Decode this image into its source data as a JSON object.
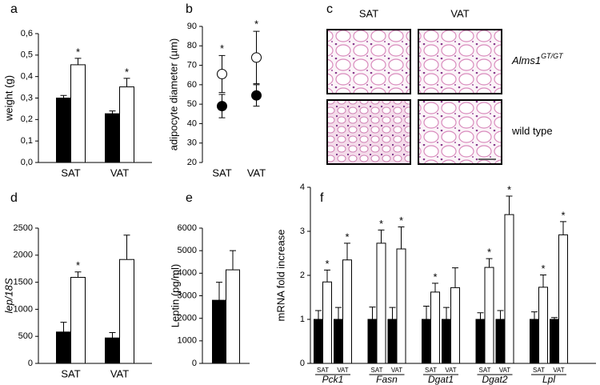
{
  "chart_data": [
    {
      "type": "bar",
      "panel_label": "a",
      "ylabel": "weight (g)",
      "categories": [
        "SAT",
        "VAT"
      ],
      "series": [
        {
          "color": "#000000",
          "values": [
            0.3,
            0.227
          ],
          "errors": [
            0.012,
            0.013
          ]
        },
        {
          "color": "#ffffff",
          "values": [
            0.455,
            0.352
          ],
          "errors": [
            0.03,
            0.04
          ],
          "annotations": [
            "*",
            "*"
          ]
        }
      ],
      "ylim": [
        0,
        0.6
      ],
      "yticks": [
        {
          "value": 0,
          "label": "0,0"
        },
        {
          "value": 0.1,
          "label": "0,1"
        },
        {
          "value": 0.2,
          "label": "0,2"
        },
        {
          "value": 0.3,
          "label": "0,3"
        },
        {
          "value": 0.4,
          "label": "0,4"
        },
        {
          "value": 0.5,
          "label": "0,5"
        },
        {
          "value": 0.6,
          "label": "0,6"
        }
      ]
    },
    {
      "type": "dot",
      "panel_label": "b",
      "ylabel": "adipocyte diameter (µm)",
      "categories": [
        "SAT",
        "VAT"
      ],
      "series": [
        {
          "color": "#000000",
          "values": [
            49,
            54.5
          ],
          "errors": [
            6,
            5.5
          ]
        },
        {
          "color": "#ffffff",
          "values": [
            65.5,
            74
          ],
          "errors": [
            9.5,
            13.5
          ],
          "annotations": [
            "*",
            "*"
          ]
        }
      ],
      "ylim": [
        20,
        90
      ],
      "yticks": [
        20,
        30,
        40,
        50,
        60,
        70,
        80,
        90
      ]
    },
    {
      "type": "image",
      "panel_label": "c",
      "columns": [
        "SAT",
        "VAT"
      ],
      "rows": [
        {
          "label": "Alms1",
          "superscript": "GT/GT"
        },
        {
          "label": "wild type"
        }
      ]
    },
    {
      "type": "bar",
      "panel_label": "d",
      "ylabel": "lep/18S",
      "categories": [
        "SAT",
        "VAT"
      ],
      "series": [
        {
          "color": "#000000",
          "values": [
            580,
            470
          ],
          "errors": [
            180,
            100
          ]
        },
        {
          "color": "#ffffff",
          "values": [
            1590,
            1920
          ],
          "errors": [
            100,
            450
          ],
          "annotations": [
            "*",
            null
          ]
        }
      ],
      "ylim": [
        0,
        2500
      ],
      "yticks": [
        0,
        500,
        1000,
        1500,
        2000,
        2500
      ]
    },
    {
      "type": "bar",
      "panel_label": "e",
      "ylabel": "Leptin (pg/ml)",
      "categories": [
        null
      ],
      "series": [
        {
          "color": "#000000",
          "values": [
            2800
          ],
          "errors": [
            800
          ]
        },
        {
          "color": "#ffffff",
          "values": [
            4150
          ],
          "errors": [
            850
          ]
        }
      ],
      "ylim": [
        0,
        6000
      ],
      "yticks": [
        0,
        1000,
        2000,
        3000,
        4000,
        5000,
        6000
      ]
    },
    {
      "type": "bar",
      "panel_label": "f",
      "ylabel": "mRNA fold increase",
      "groups": [
        "Pck1",
        "Fasn",
        "Dgat1",
        "Dgat2",
        "Lpl"
      ],
      "categories": [
        "SAT",
        "VAT",
        "SAT",
        "VAT",
        "SAT",
        "VAT",
        "SAT",
        "VAT",
        "SAT",
        "VAT"
      ],
      "series": [
        {
          "color": "#000000",
          "values": [
            1,
            1,
            1,
            1,
            1,
            1,
            1,
            1,
            1,
            1
          ],
          "errors": [
            0.2,
            0.27,
            0.28,
            0.27,
            0.3,
            0.27,
            0.15,
            0.2,
            0.17,
            0.04
          ]
        },
        {
          "color": "#ffffff",
          "values": [
            1.85,
            2.35,
            2.73,
            2.6,
            1.62,
            1.72,
            2.18,
            3.38,
            1.73,
            2.92
          ],
          "errors": [
            0.27,
            0.38,
            0.3,
            0.5,
            0.2,
            0.45,
            0.2,
            0.42,
            0.28,
            0.3
          ],
          "annotations": [
            "*",
            "*",
            "*",
            "*",
            "*",
            null,
            "*",
            "*",
            "*",
            "*"
          ]
        }
      ],
      "ylim": [
        0,
        4
      ],
      "yticks": [
        0,
        1,
        2,
        3,
        4
      ]
    }
  ]
}
